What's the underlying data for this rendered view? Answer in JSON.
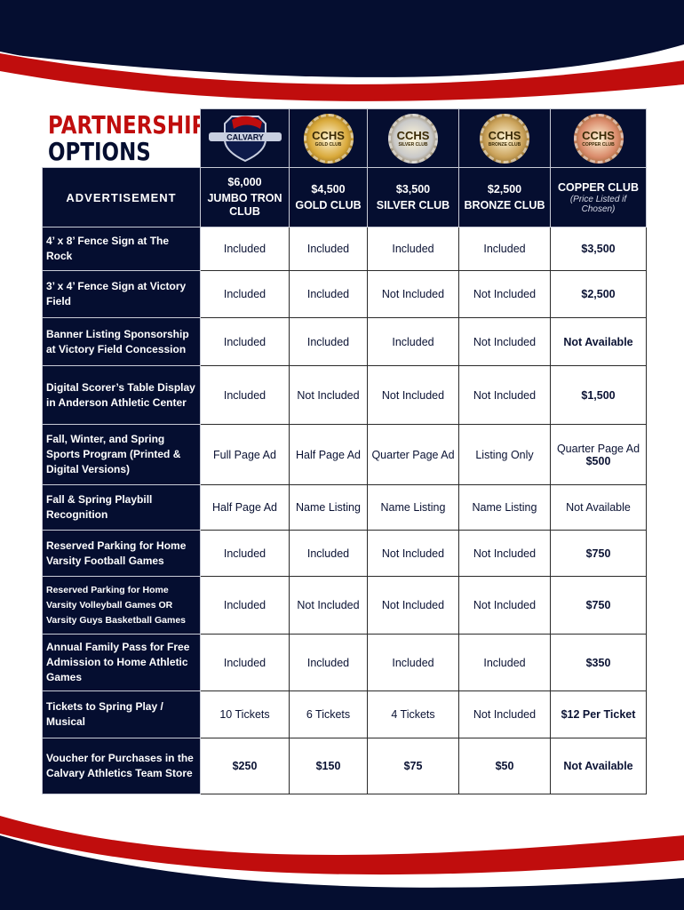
{
  "title": {
    "line1": "PARTNERSHIP",
    "line2": "OPTIONS"
  },
  "colors": {
    "navy": "#050e30",
    "red": "#c00d0d"
  },
  "logos": [
    {
      "name": "calvary-logo",
      "text": "CALVARY"
    },
    {
      "name": "gold-club-medal",
      "text": "CCHS",
      "sub": "GOLD CLUB",
      "color": "#d9a93a"
    },
    {
      "name": "silver-club-medal",
      "text": "CCHS",
      "sub": "SILVER CLUB",
      "color": "#c9c9c9"
    },
    {
      "name": "bronze-club-medal",
      "text": "CCHS",
      "sub": "BRONZE CLUB",
      "color": "#caa25a"
    },
    {
      "name": "copper-club-medal",
      "text": "CCHS",
      "sub": "COPPER CLUB",
      "color": "#d98a6a"
    }
  ],
  "header": {
    "advertisement": "ADVERTISEMENT",
    "tiers": [
      {
        "price": "$6,000",
        "name": "JUMBO TRON CLUB"
      },
      {
        "price": "$4,500",
        "name": "GOLD CLUB"
      },
      {
        "price": "$3,500",
        "name": "SILVER CLUB"
      },
      {
        "price": "$2,500",
        "name": "BRONZE CLUB"
      },
      {
        "price": "",
        "name": "COPPER CLUB",
        "note": "(Price Listed if Chosen)"
      }
    ]
  },
  "rows": [
    {
      "item": "4’ x 8’ Fence Sign at The Rock",
      "values": [
        "Included",
        "Included",
        "Included",
        "Included"
      ],
      "copper": {
        "text": "$3,500",
        "bold": true
      }
    },
    {
      "item": "3’ x 4’ Fence Sign at Victory Field",
      "values": [
        "Included",
        "Included",
        "Not Included",
        "Not Included"
      ],
      "copper": {
        "text": "$2,500",
        "bold": true
      }
    },
    {
      "item": "Banner Listing Sponsorship at Victory Field Concession",
      "values": [
        "Included",
        "Included",
        "Included",
        "Not Included"
      ],
      "copper": {
        "text": "Not Available",
        "bold": true
      }
    },
    {
      "item": "Digital Scorer’s Table Display in Anderson Athletic Center",
      "values": [
        "Included",
        "Not Included",
        "Not Included",
        "Not Included"
      ],
      "copper": {
        "text": "$1,500",
        "bold": true
      }
    },
    {
      "item": "Fall, Winter, and Spring Sports Program (Printed & Digital Versions)",
      "values": [
        "Full Page Ad",
        "Half Page Ad",
        "Quarter Page Ad",
        "Listing Only"
      ],
      "copper": {
        "text": "Quarter Page Ad",
        "bold": false,
        "sub": "$500"
      }
    },
    {
      "item": "Fall & Spring Playbill Recognition",
      "values": [
        "Half Page Ad",
        "Name Listing",
        "Name Listing",
        "Name Listing"
      ],
      "copper": {
        "text": "Not Available",
        "bold": false
      }
    },
    {
      "item": "Reserved Parking for Home Varsity Football Games",
      "values": [
        "Included",
        "Included",
        "Not Included",
        "Not Included"
      ],
      "copper": {
        "text": "$750",
        "bold": true
      }
    },
    {
      "item": "Reserved Parking for Home Varsity Volleyball Games OR Varsity Guys Basketball Games",
      "small": true,
      "values": [
        "Included",
        "Not Included",
        "Not Included",
        "Not Included"
      ],
      "copper": {
        "text": "$750",
        "bold": true
      }
    },
    {
      "item": "Annual Family Pass for Free Admission to Home Athletic Games",
      "values": [
        "Included",
        "Included",
        "Included",
        "Included"
      ],
      "copper": {
        "text": "$350",
        "bold": true
      }
    },
    {
      "item": "Tickets to Spring Play / Musical",
      "values": [
        "10 Tickets",
        "6 Tickets",
        "4 Tickets",
        "Not Included"
      ],
      "copper": {
        "text": "$12 Per Ticket",
        "bold": true
      }
    },
    {
      "item": "Voucher for Purchases in the Calvary Athletics Team Store",
      "values": [
        "$250",
        "$150",
        "$75",
        "$50"
      ],
      "bold": true,
      "copper": {
        "text": "Not Available",
        "bold": true
      }
    }
  ]
}
